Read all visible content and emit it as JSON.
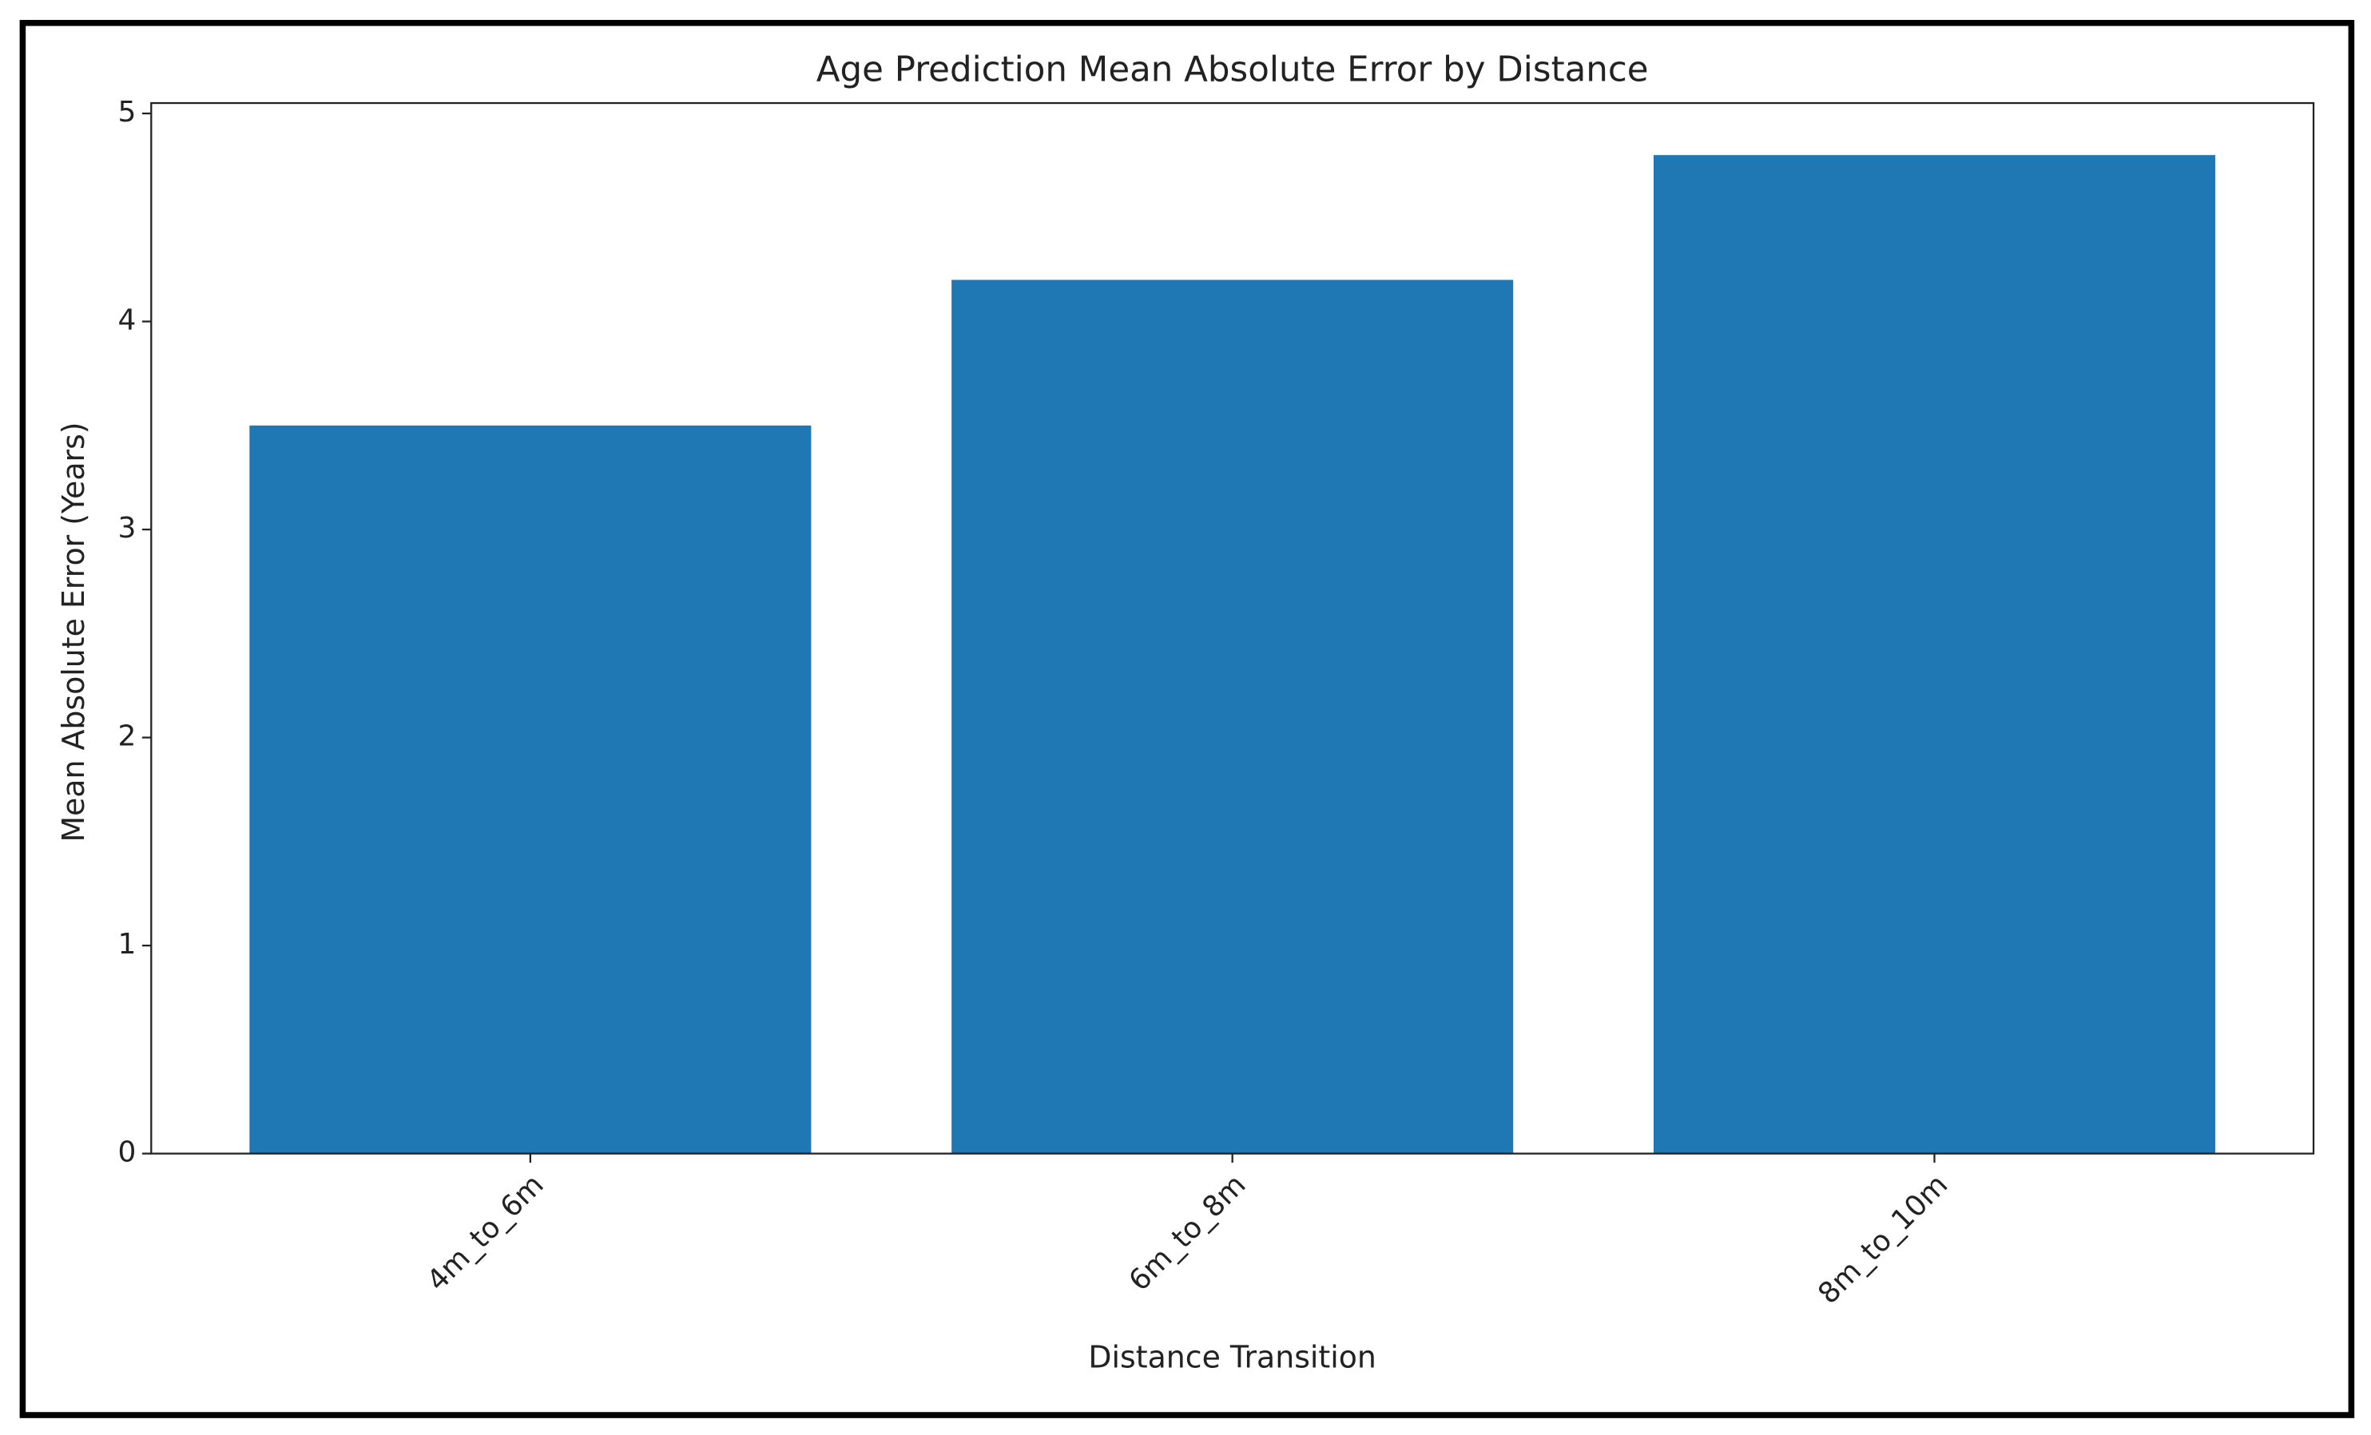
{
  "chart_data": {
    "type": "bar",
    "title": "Age Prediction Mean Absolute Error by Distance",
    "x_label": "Distance Transition",
    "y_label": "Mean Absolute Error (Years)",
    "categories": [
      "4m_to_6m",
      "6m_to_8m",
      "8m_to_10m"
    ],
    "values": [
      3.5,
      4.2,
      4.8
    ],
    "color": "#1f77b4",
    "ylim": [
      0,
      5.05
    ],
    "yticks": [
      0,
      1,
      2,
      3,
      4,
      5
    ],
    "grid": false
  }
}
